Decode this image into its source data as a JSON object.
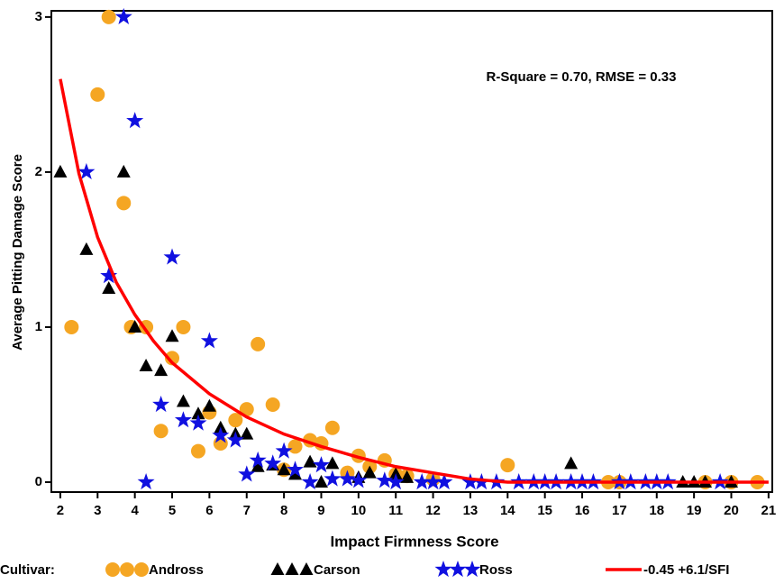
{
  "chart_data": {
    "type": "scatter",
    "annotation": "R-Square = 0.70, RMSE = 0.33",
    "x_label": "Impact Firmness Score",
    "y_label": "Average Pitting Damage Score",
    "legend_title": "Cultivar:",
    "xlim": [
      1.76,
      21.1
    ],
    "ylim": [
      -0.064,
      3.04
    ],
    "xticks": [
      2,
      3,
      4,
      5,
      6,
      7,
      8,
      9,
      10,
      11,
      12,
      13,
      14,
      15,
      16,
      17,
      18,
      19,
      20,
      21
    ],
    "yticks": [
      0,
      1,
      2,
      3
    ],
    "series": [
      {
        "name": "Andross",
        "color": "#f5a623",
        "marker": "circle",
        "x": [
          3.3,
          2.3,
          3,
          3.7,
          3.9,
          4.3,
          4.7,
          5,
          5.3,
          5.7,
          6,
          6.3,
          6.7,
          7,
          7.3,
          7.7,
          8,
          8.3,
          8.7,
          9,
          9.3,
          9.7,
          10,
          10.3,
          10.7,
          11,
          11.3,
          12,
          14,
          16.7,
          17,
          19.3,
          20,
          20.7
        ],
        "values": [
          3,
          1,
          2.5,
          1.8,
          1,
          1,
          0.33,
          0.8,
          1,
          0.2,
          0.45,
          0.25,
          0.4,
          0.47,
          0.89,
          0.5,
          0.08,
          0.23,
          0.27,
          0.25,
          0.35,
          0.06,
          0.17,
          0.1,
          0.14,
          0.05,
          0.04,
          0.02,
          0.11,
          0,
          0,
          0,
          0,
          0
        ]
      },
      {
        "name": "Carson",
        "color": "#000000",
        "marker": "triangle",
        "x": [
          2,
          2.7,
          3.3,
          3.7,
          4,
          4.3,
          4.7,
          5,
          5.3,
          5.7,
          6,
          6.3,
          6.7,
          7,
          7.3,
          7.7,
          8,
          8.3,
          8.7,
          9,
          9.3,
          10,
          10.3,
          11,
          11.3,
          15.7,
          18.7,
          19,
          19.3,
          20
        ],
        "values": [
          2,
          1.5,
          1.25,
          2,
          1,
          0.75,
          0.72,
          0.94,
          0.52,
          0.44,
          0.49,
          0.35,
          0.31,
          0.31,
          0.1,
          0.11,
          0.08,
          0.05,
          0.13,
          0,
          0.12,
          0.03,
          0.06,
          0.05,
          0.03,
          0.12,
          0,
          0,
          0,
          0
        ]
      },
      {
        "name": "Ross",
        "color": "#1010e0",
        "marker": "star",
        "x": [
          3.7,
          2.7,
          4,
          3.3,
          5,
          6,
          4.7,
          5.3,
          5.7,
          4.3,
          6.3,
          6.7,
          7,
          7.3,
          7.7,
          8,
          8.3,
          8.7,
          9,
          9.3,
          9.7,
          10,
          10.7,
          11,
          11.7,
          12,
          12.3,
          13,
          13.3,
          13.7,
          14.3,
          14.7,
          15,
          15.3,
          15.7,
          16,
          16.3,
          17,
          17.3,
          17.7,
          18,
          18.3,
          19.7
        ],
        "values": [
          3,
          2,
          2.33,
          1.33,
          1.45,
          0.91,
          0.5,
          0.4,
          0.38,
          0,
          0.3,
          0.27,
          0.05,
          0.14,
          0.12,
          0.2,
          0.08,
          0,
          0.11,
          0.02,
          0.02,
          0.01,
          0.01,
          0,
          0,
          0,
          0,
          0,
          0,
          0,
          0,
          0,
          0,
          0,
          0,
          0,
          0,
          0,
          0,
          0,
          0,
          0,
          0
        ]
      },
      {
        "name": "-0.45 +6.1/SFI",
        "color": "#ff0000",
        "marker": "line",
        "x": [
          2,
          2.5,
          3,
          3.5,
          4,
          4.5,
          5,
          6,
          7,
          8,
          9,
          10,
          11,
          12,
          13,
          14,
          15,
          16,
          17,
          18,
          19,
          20,
          21
        ],
        "values": [
          2.6,
          1.99,
          1.58,
          1.29,
          1.08,
          0.91,
          0.77,
          0.57,
          0.42,
          0.31,
          0.23,
          0.16,
          0.1,
          0.06,
          0.02,
          0,
          0,
          0,
          0,
          0,
          0,
          0,
          0
        ]
      }
    ]
  }
}
